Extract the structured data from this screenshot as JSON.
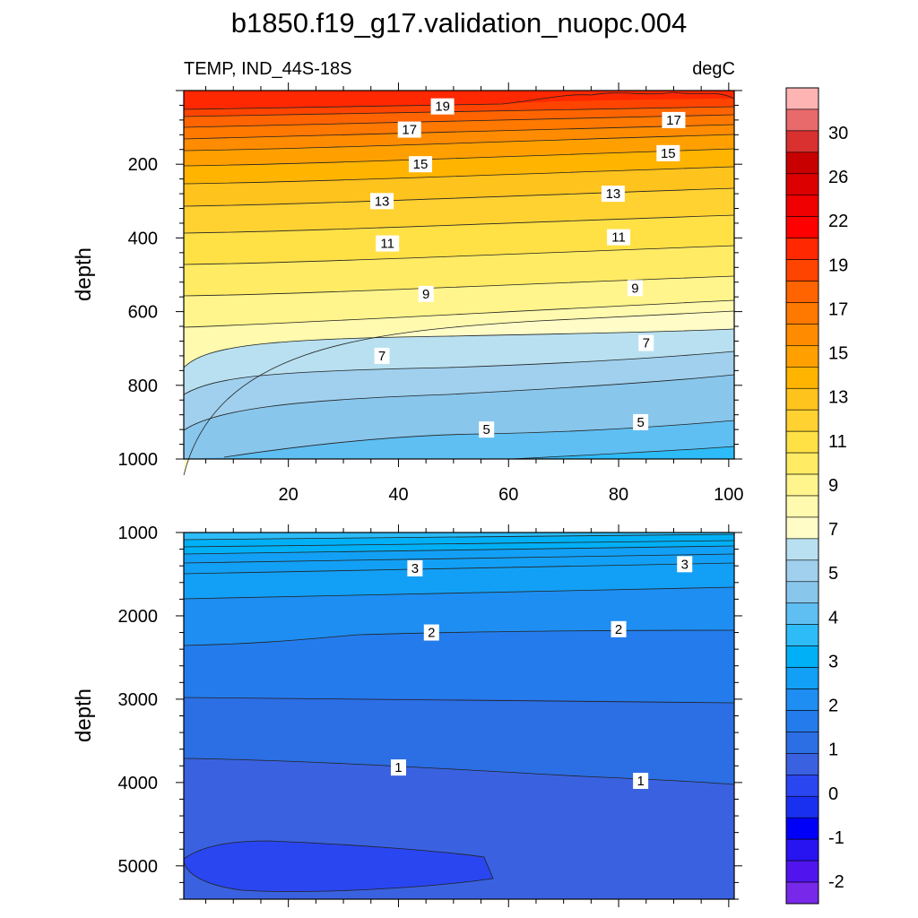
{
  "chart_data": {
    "type": "contour",
    "title": "b1850.f19_g17.validation_nuopc.004",
    "left_string": "TEMP, IND_44S-18S",
    "right_string": "degC",
    "xlim": [
      1,
      101
    ],
    "x_tick_labels": [
      "20",
      "40",
      "60",
      "80",
      "100"
    ],
    "colorbar": {
      "labels": [
        "30",
        "26",
        "22",
        "19",
        "17",
        "15",
        "13",
        "11",
        "9",
        "7",
        "5",
        "4",
        "3",
        "2",
        "1",
        "0",
        "-1",
        "-2"
      ],
      "colors": [
        "#ffb4b4",
        "#e86a6a",
        "#d93030",
        "#c80000",
        "#dc0000",
        "#f00000",
        "#ff0000",
        "#ff2800",
        "#ff4400",
        "#ff6400",
        "#ff7800",
        "#ff8c00",
        "#ffa000",
        "#ffb400",
        "#ffc31e",
        "#ffd232",
        "#ffe146",
        "#ffeb64",
        "#fff58c",
        "#fffaae",
        "#fffcc8",
        "#b8e0f0",
        "#a0d0ee",
        "#88c6ec",
        "#5fbff2",
        "#2ebcf8",
        "#00b0f6",
        "#12a0f6",
        "#1e8ef2",
        "#247cec",
        "#2c6ee4",
        "#3a62e0",
        "#2a46f0",
        "#1a30f0",
        "#0000f8",
        "#2814f0",
        "#5014ee",
        "#7828e8"
      ]
    },
    "panels": [
      {
        "ylabel": "depth",
        "ylim": [
          0,
          1000
        ],
        "y_tick_labels": [
          "200",
          "400",
          "600",
          "800",
          "1000"
        ],
        "contour_labels": [
          {
            "value": "19",
            "x": 48,
            "y": 43
          },
          {
            "value": "17",
            "x": 42,
            "y": 106
          },
          {
            "value": "17",
            "x": 90,
            "y": 80
          },
          {
            "value": "15",
            "x": 44,
            "y": 200
          },
          {
            "value": "15",
            "x": 89,
            "y": 170
          },
          {
            "value": "13",
            "x": 37,
            "y": 300
          },
          {
            "value": "13",
            "x": 79,
            "y": 280
          },
          {
            "value": "11",
            "x": 38,
            "y": 415
          },
          {
            "value": "11",
            "x": 80,
            "y": 398
          },
          {
            "value": "9",
            "x": 45,
            "y": 552
          },
          {
            "value": "9",
            "x": 83,
            "y": 536
          },
          {
            "value": "7",
            "x": 37,
            "y": 720
          },
          {
            "value": "7",
            "x": 85,
            "y": 685
          },
          {
            "value": "5",
            "x": 56,
            "y": 920
          },
          {
            "value": "5",
            "x": 84,
            "y": 900
          }
        ]
      },
      {
        "ylabel": "depth",
        "ylim": [
          1000,
          5400
        ],
        "y_tick_labels": [
          "1000",
          "2000",
          "3000",
          "4000",
          "5000"
        ],
        "contour_labels": [
          {
            "value": "3",
            "x": 43,
            "y": 1430
          },
          {
            "value": "3",
            "x": 92,
            "y": 1380
          },
          {
            "value": "2",
            "x": 46,
            "y": 2200
          },
          {
            "value": "2",
            "x": 80,
            "y": 2160
          },
          {
            "value": "1",
            "x": 40,
            "y": 3820
          },
          {
            "value": "1",
            "x": 84,
            "y": 3980
          }
        ]
      }
    ]
  }
}
